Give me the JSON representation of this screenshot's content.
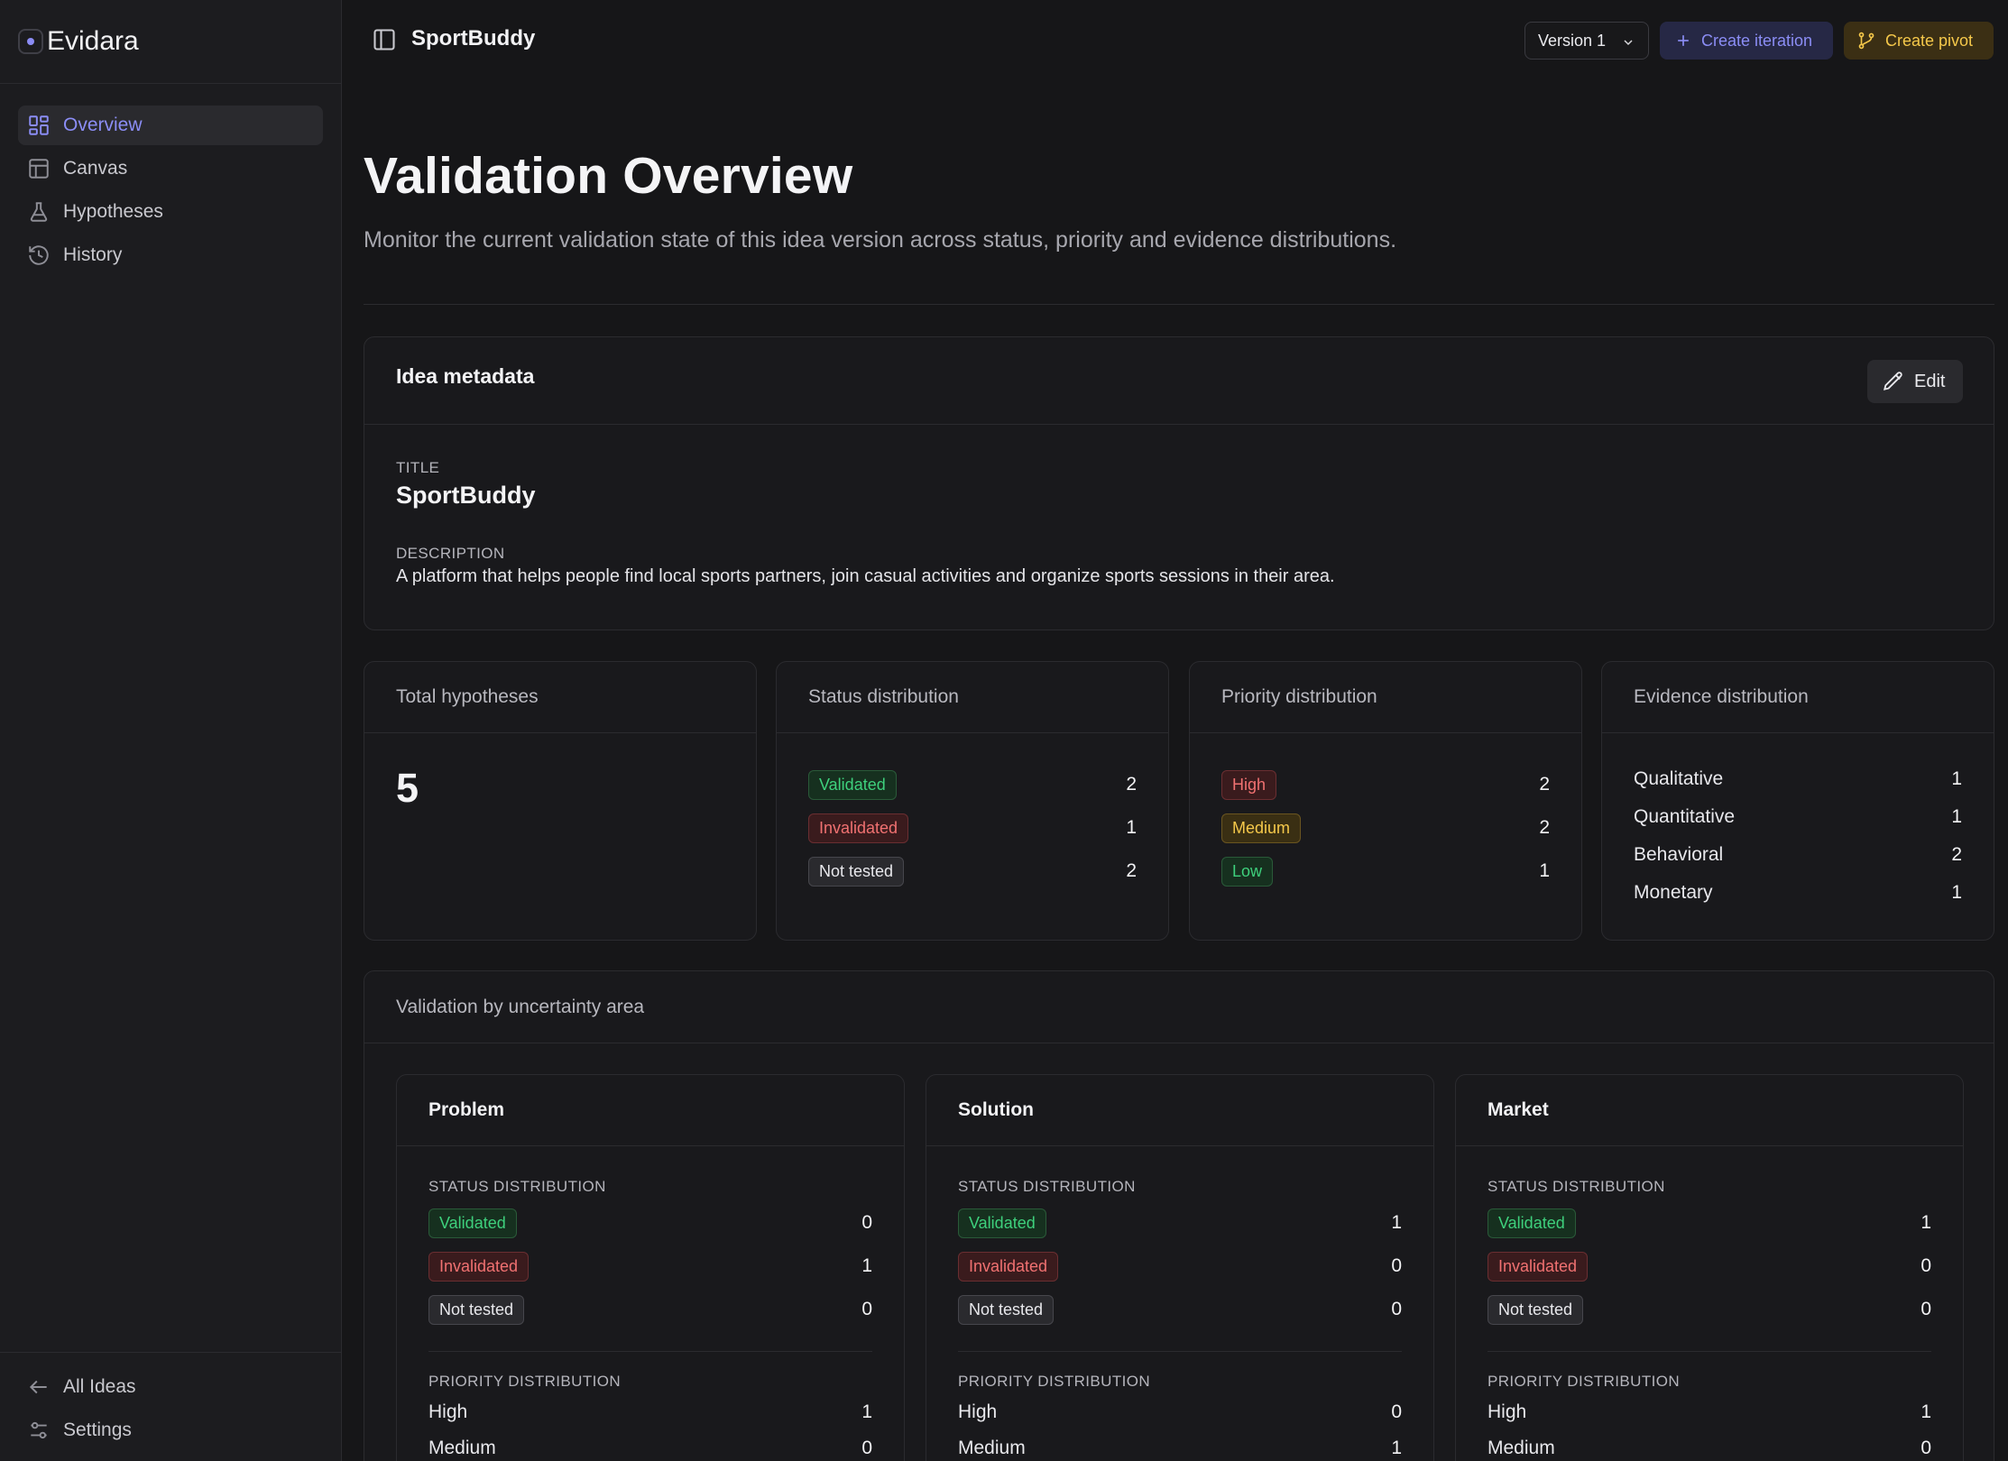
{
  "app": {
    "name": "Evidara"
  },
  "sidebar": {
    "nav": [
      {
        "label": "Overview",
        "icon": "grid-icon",
        "active": true
      },
      {
        "label": "Canvas",
        "icon": "layout-icon",
        "active": false
      },
      {
        "label": "Hypotheses",
        "icon": "flask-icon",
        "active": false
      },
      {
        "label": "History",
        "icon": "history-icon",
        "active": false
      }
    ],
    "bottom": [
      {
        "label": "All Ideas",
        "icon": "arrow-left-icon"
      },
      {
        "label": "Settings",
        "icon": "sliders-icon"
      }
    ]
  },
  "topbar": {
    "project": "SportBuddy",
    "version": "Version 1",
    "create_iteration": "Create iteration",
    "create_pivot": "Create pivot"
  },
  "page": {
    "title": "Validation Overview",
    "subtitle": "Monitor the current validation state of this idea version across status, priority and evidence distributions."
  },
  "metadata": {
    "heading": "Idea metadata",
    "edit": "Edit",
    "title_label": "TITLE",
    "title_value": "SportBuddy",
    "description_label": "DESCRIPTION",
    "description_value": "A platform that helps people find local sports partners, join casual activities and organize sports sessions in their area."
  },
  "stats": {
    "total": {
      "label": "Total hypotheses",
      "value": "5"
    },
    "status": {
      "label": "Status distribution",
      "rows": [
        {
          "label": "Validated",
          "value": "2"
        },
        {
          "label": "Invalidated",
          "value": "1"
        },
        {
          "label": "Not tested",
          "value": "2"
        }
      ]
    },
    "priority": {
      "label": "Priority distribution",
      "rows": [
        {
          "label": "High",
          "value": "2"
        },
        {
          "label": "Medium",
          "value": "2"
        },
        {
          "label": "Low",
          "value": "1"
        }
      ]
    },
    "evidence": {
      "label": "Evidence distribution",
      "rows": [
        {
          "label": "Qualitative",
          "value": "1"
        },
        {
          "label": "Quantitative",
          "value": "1"
        },
        {
          "label": "Behavioral",
          "value": "2"
        },
        {
          "label": "Monetary",
          "value": "1"
        }
      ]
    }
  },
  "uncertainty": {
    "heading": "Validation by uncertainty area",
    "status_label": "STATUS DISTRIBUTION",
    "priority_label": "PRIORITY DISTRIBUTION",
    "areas": [
      {
        "name": "Problem",
        "status": [
          {
            "label": "Validated",
            "value": "0"
          },
          {
            "label": "Invalidated",
            "value": "1"
          },
          {
            "label": "Not tested",
            "value": "0"
          }
        ],
        "priority": [
          {
            "label": "High",
            "value": "1"
          },
          {
            "label": "Medium",
            "value": "0"
          }
        ]
      },
      {
        "name": "Solution",
        "status": [
          {
            "label": "Validated",
            "value": "1"
          },
          {
            "label": "Invalidated",
            "value": "0"
          },
          {
            "label": "Not tested",
            "value": "0"
          }
        ],
        "priority": [
          {
            "label": "High",
            "value": "0"
          },
          {
            "label": "Medium",
            "value": "1"
          }
        ]
      },
      {
        "name": "Market",
        "status": [
          {
            "label": "Validated",
            "value": "1"
          },
          {
            "label": "Invalidated",
            "value": "0"
          },
          {
            "label": "Not tested",
            "value": "0"
          }
        ],
        "priority": [
          {
            "label": "High",
            "value": "1"
          },
          {
            "label": "Medium",
            "value": "0"
          }
        ]
      }
    ]
  },
  "colors": {
    "accent": "#8b8df5",
    "validated": "#3ed07c",
    "invalidated": "#f07171",
    "medium": "#f5c84a"
  }
}
